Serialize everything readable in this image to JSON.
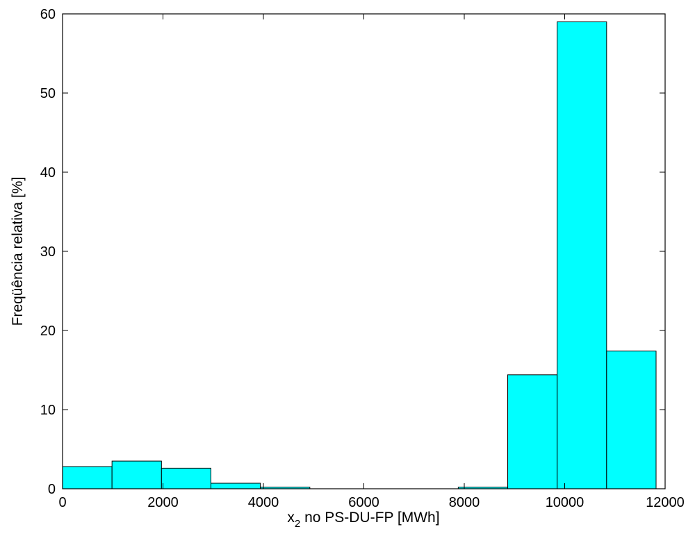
{
  "chart_data": {
    "type": "bar",
    "title": "",
    "xlabel_main": "x",
    "xlabel_sub": "2",
    "xlabel_rest": " no PS-DU-FP [MWh]",
    "ylabel": "Freqüência relativa [%]",
    "xlim": [
      0,
      12000
    ],
    "ylim": [
      0,
      60
    ],
    "xticks": [
      0,
      2000,
      4000,
      6000,
      8000,
      10000,
      12000
    ],
    "yticks": [
      0,
      10,
      20,
      30,
      40,
      50,
      60
    ],
    "grid": false,
    "bar_color": "#00ffff",
    "bins": [
      {
        "x0": 0,
        "x1": 985,
        "value": 2.8
      },
      {
        "x0": 985,
        "x1": 1970,
        "value": 3.5
      },
      {
        "x0": 1970,
        "x1": 2955,
        "value": 2.6
      },
      {
        "x0": 2955,
        "x1": 3940,
        "value": 0.7
      },
      {
        "x0": 3940,
        "x1": 4925,
        "value": 0.2
      },
      {
        "x0": 4925,
        "x1": 5910,
        "value": 0
      },
      {
        "x0": 5910,
        "x1": 6895,
        "value": 0
      },
      {
        "x0": 6895,
        "x1": 7880,
        "value": 0
      },
      {
        "x0": 7880,
        "x1": 8865,
        "value": 0.2
      },
      {
        "x0": 8865,
        "x1": 9850,
        "value": 14.4
      },
      {
        "x0": 9850,
        "x1": 10835,
        "value": 59.0
      },
      {
        "x0": 10835,
        "x1": 11820,
        "value": 17.4
      }
    ]
  }
}
